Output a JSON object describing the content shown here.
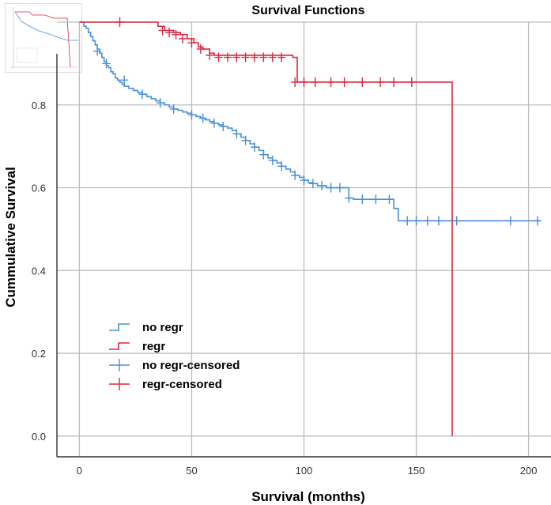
{
  "chart_data": {
    "type": "line",
    "title": "Survival Functions",
    "xlabel": "Survival (months)",
    "ylabel": "Cummulative Survival",
    "xlim": [
      -10,
      210
    ],
    "ylim": [
      -0.05,
      1.0
    ],
    "xticks": [
      "0",
      "50",
      "100",
      "150",
      "200"
    ],
    "xtick_values": [
      0,
      50,
      100,
      150,
      200
    ],
    "yticks": [
      "0.0",
      "0.2",
      "0.4",
      "0.6",
      "0.8"
    ],
    "ytick_values": [
      0.0,
      0.2,
      0.4,
      0.6,
      0.8
    ],
    "grid": true,
    "legend_position": "bottom-left",
    "series": [
      {
        "name": "no regr",
        "color": "#4a90d9",
        "step_x": [
          0,
          2,
          3,
          4,
          5,
          6,
          7,
          8,
          9,
          10,
          11,
          12,
          13,
          14,
          15,
          16,
          17,
          18,
          19,
          20,
          22,
          24,
          26,
          28,
          30,
          32,
          34,
          36,
          38,
          40,
          42,
          44,
          46,
          48,
          50,
          52,
          54,
          56,
          58,
          60,
          62,
          64,
          66,
          68,
          70,
          72,
          74,
          76,
          78,
          80,
          82,
          84,
          86,
          88,
          90,
          92,
          94,
          96,
          98,
          100,
          102,
          104,
          106,
          110,
          120,
          122,
          140,
          142,
          144,
          205
        ],
        "step_y": [
          1.0,
          0.99,
          0.985,
          0.975,
          0.965,
          0.955,
          0.945,
          0.935,
          0.925,
          0.915,
          0.905,
          0.895,
          0.89,
          0.88,
          0.875,
          0.865,
          0.86,
          0.855,
          0.85,
          0.845,
          0.84,
          0.835,
          0.83,
          0.826,
          0.82,
          0.815,
          0.81,
          0.805,
          0.8,
          0.795,
          0.79,
          0.787,
          0.783,
          0.78,
          0.776,
          0.772,
          0.768,
          0.764,
          0.76,
          0.756,
          0.752,
          0.748,
          0.744,
          0.738,
          0.73,
          0.722,
          0.714,
          0.706,
          0.698,
          0.69,
          0.68,
          0.672,
          0.666,
          0.66,
          0.652,
          0.645,
          0.638,
          0.63,
          0.625,
          0.618,
          0.612,
          0.61,
          0.605,
          0.6,
          0.575,
          0.572,
          0.55,
          0.52,
          0.52,
          0.52
        ]
      },
      {
        "name": "regr",
        "color": "#d9283e",
        "step_x": [
          0,
          25,
          35,
          38,
          42,
          45,
          48,
          51,
          53,
          55,
          58,
          60,
          95,
          97,
          166,
          166
        ],
        "step_y": [
          1.0,
          1.0,
          0.99,
          0.98,
          0.975,
          0.97,
          0.96,
          0.95,
          0.94,
          0.935,
          0.925,
          0.92,
          0.915,
          0.855,
          0.855,
          0.0
        ]
      }
    ],
    "censored": [
      {
        "name": "no regr-censored",
        "color": "#4a90d9",
        "points": [
          [
            8,
            0.93
          ],
          [
            12,
            0.9
          ],
          [
            20,
            0.86
          ],
          [
            28,
            0.826
          ],
          [
            36,
            0.805
          ],
          [
            42,
            0.79
          ],
          [
            50,
            0.776
          ],
          [
            55,
            0.768
          ],
          [
            60,
            0.756
          ],
          [
            64,
            0.748
          ],
          [
            70,
            0.73
          ],
          [
            74,
            0.714
          ],
          [
            78,
            0.698
          ],
          [
            82,
            0.68
          ],
          [
            86,
            0.666
          ],
          [
            90,
            0.652
          ],
          [
            96,
            0.63
          ],
          [
            100,
            0.618
          ],
          [
            104,
            0.61
          ],
          [
            108,
            0.605
          ],
          [
            112,
            0.6
          ],
          [
            116,
            0.6
          ],
          [
            120,
            0.575
          ],
          [
            126,
            0.572
          ],
          [
            132,
            0.572
          ],
          [
            138,
            0.572
          ],
          [
            146,
            0.52
          ],
          [
            150,
            0.52
          ],
          [
            155,
            0.52
          ],
          [
            160,
            0.52
          ],
          [
            168,
            0.52
          ],
          [
            192,
            0.52
          ],
          [
            204,
            0.52
          ]
        ]
      },
      {
        "name": "regr-censored",
        "color": "#d9283e",
        "points": [
          [
            18,
            1.0
          ],
          [
            37,
            0.98
          ],
          [
            40,
            0.975
          ],
          [
            43,
            0.97
          ],
          [
            46,
            0.96
          ],
          [
            50,
            0.95
          ],
          [
            54,
            0.935
          ],
          [
            58,
            0.92
          ],
          [
            62,
            0.915
          ],
          [
            66,
            0.915
          ],
          [
            70,
            0.915
          ],
          [
            74,
            0.915
          ],
          [
            78,
            0.915
          ],
          [
            82,
            0.915
          ],
          [
            86,
            0.915
          ],
          [
            90,
            0.915
          ],
          [
            96,
            0.855
          ],
          [
            100,
            0.855
          ],
          [
            105,
            0.855
          ],
          [
            112,
            0.855
          ],
          [
            118,
            0.855
          ],
          [
            126,
            0.855
          ],
          [
            134,
            0.855
          ],
          [
            140,
            0.855
          ],
          [
            148,
            0.855
          ]
        ]
      }
    ]
  }
}
